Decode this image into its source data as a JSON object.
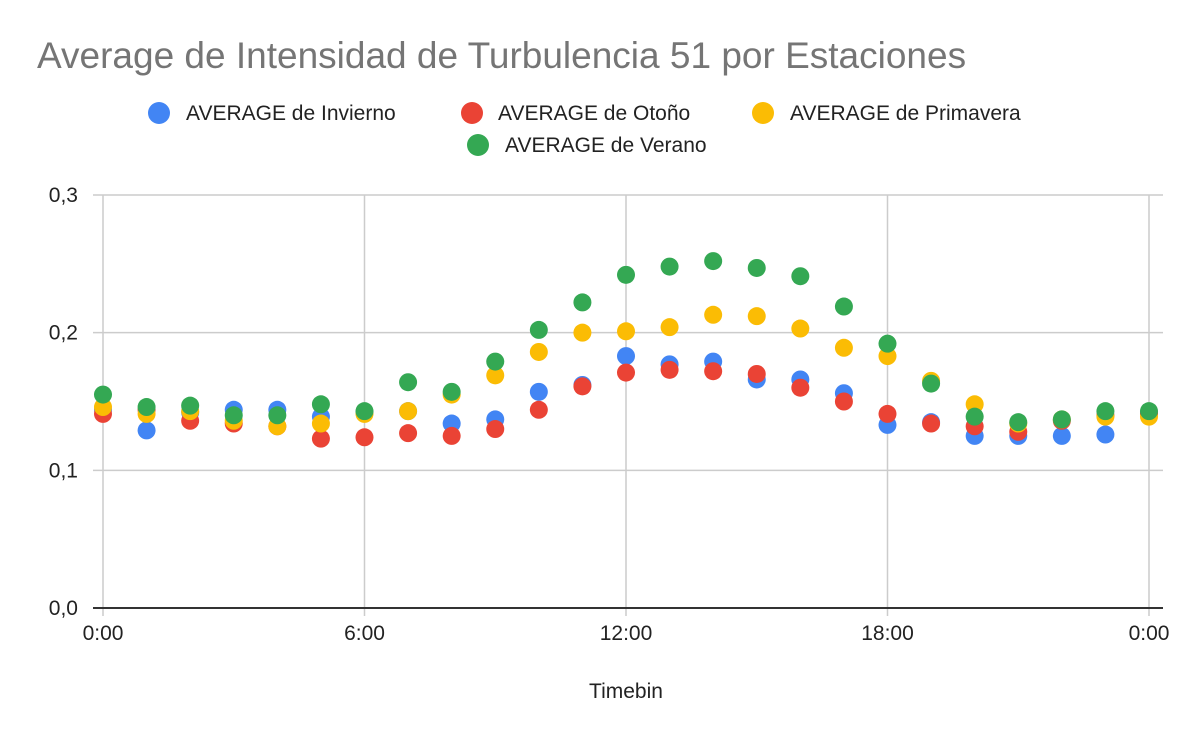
{
  "chart_data": {
    "type": "scatter",
    "title": "Average de Intensidad de Turbulencia 51 por Estaciones",
    "xlabel": "Timebin",
    "ylabel": "",
    "xlim": [
      0,
      24
    ],
    "ylim": [
      0,
      0.3
    ],
    "x_ticks": [
      0,
      6,
      12,
      18,
      24
    ],
    "x_tick_labels": [
      "0:00",
      "6:00",
      "12:00",
      "18:00",
      "0:00"
    ],
    "y_ticks": [
      0,
      0.1,
      0.2,
      0.3
    ],
    "y_tick_labels": [
      "0,0",
      "0,1",
      "0,2",
      "0,3"
    ],
    "grid": true,
    "legend_position": "top",
    "x": [
      0,
      1,
      2,
      3,
      4,
      5,
      6,
      7,
      8,
      9,
      10,
      11,
      12,
      13,
      14,
      15,
      16,
      17,
      18,
      19,
      20,
      21,
      22,
      23,
      24
    ],
    "series": [
      {
        "name": "AVERAGE de Invierno",
        "color": "#4285F4",
        "values": [
          0.144,
          0.129,
          0.142,
          0.144,
          0.144,
          0.139,
          0.142,
          0.143,
          0.134,
          0.137,
          0.157,
          0.162,
          0.183,
          0.177,
          0.179,
          0.166,
          0.166,
          0.156,
          0.133,
          0.135,
          0.125,
          0.125,
          0.125,
          0.126,
          0.142
        ]
      },
      {
        "name": "AVERAGE de Otoño",
        "color": "#EA4335",
        "values": [
          0.141,
          0.144,
          0.136,
          0.134,
          0.132,
          0.123,
          0.124,
          0.127,
          0.125,
          0.13,
          0.144,
          0.161,
          0.171,
          0.173,
          0.172,
          0.17,
          0.16,
          0.15,
          0.141,
          0.134,
          0.132,
          0.128,
          0.136,
          0.14,
          0.141
        ]
      },
      {
        "name": "AVERAGE de Primavera",
        "color": "#FBBC04",
        "values": [
          0.146,
          0.141,
          0.143,
          0.136,
          0.132,
          0.134,
          0.141,
          0.143,
          0.155,
          0.169,
          0.186,
          0.2,
          0.201,
          0.204,
          0.213,
          0.212,
          0.203,
          0.189,
          0.183,
          0.165,
          0.148,
          0.134,
          0.137,
          0.139,
          0.139
        ]
      },
      {
        "name": "AVERAGE de Verano",
        "color": "#34A853",
        "values": [
          0.155,
          0.146,
          0.147,
          0.14,
          0.14,
          0.148,
          0.143,
          0.164,
          0.157,
          0.179,
          0.202,
          0.222,
          0.242,
          0.248,
          0.252,
          0.247,
          0.241,
          0.219,
          0.192,
          0.163,
          0.139,
          0.135,
          0.137,
          0.143,
          0.143
        ]
      }
    ]
  }
}
